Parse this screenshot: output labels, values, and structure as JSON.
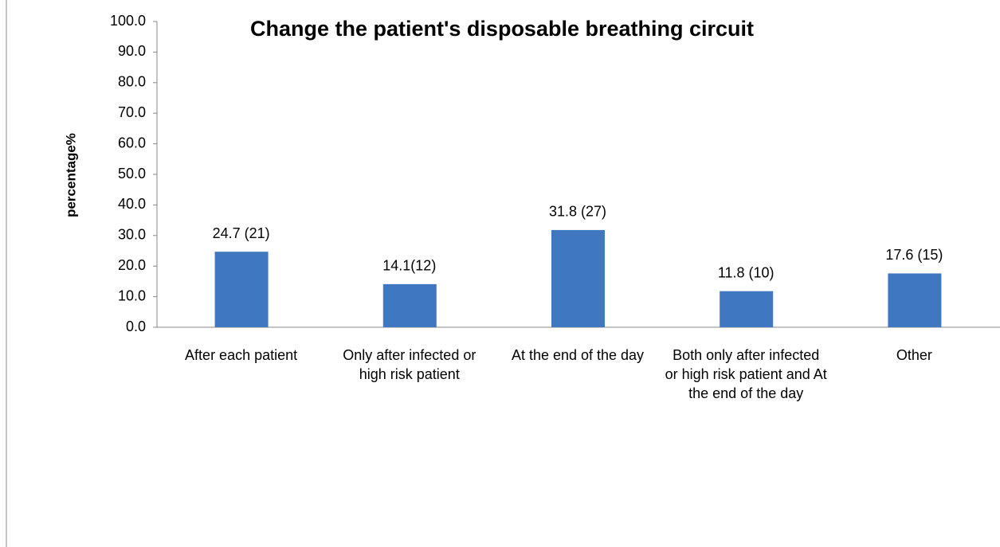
{
  "chart_data": {
    "type": "bar",
    "title": "Change the patient's disposable breathing circuit",
    "y_label": "percentage%",
    "categories": [
      "After each patient",
      "Only after infected or high risk patient",
      "At the end of the day",
      "Both only after infected or high risk patient and At the end of the day",
      "Other"
    ],
    "values": [
      24.7,
      14.1,
      31.8,
      11.8,
      17.6
    ],
    "value_labels": [
      "24.7 (21)",
      "14.1(12)",
      "31.8 (27)",
      "11.8 (10)",
      "17.6 (15)"
    ],
    "color": "#3f77c0",
    "ylim": [
      0,
      100
    ],
    "yticks": [
      {
        "value": 0,
        "label": "0.0"
      },
      {
        "value": 10,
        "label": "10.0"
      },
      {
        "value": 20,
        "label": "20.0"
      },
      {
        "value": 30,
        "label": "30.0"
      },
      {
        "value": 40,
        "label": "40.0"
      },
      {
        "value": 50,
        "label": "50.0"
      },
      {
        "value": 60,
        "label": "60.0"
      },
      {
        "value": 70,
        "label": "70.0"
      },
      {
        "value": 80,
        "label": "80.0"
      },
      {
        "value": 90,
        "label": "90.0"
      },
      {
        "value": 100,
        "label": "100.0"
      }
    ],
    "grid": false
  }
}
